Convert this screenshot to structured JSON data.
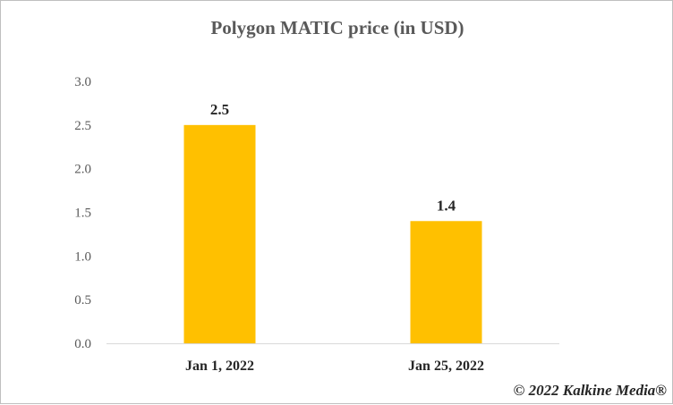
{
  "chart_data": {
    "type": "bar",
    "title": "Polygon MATIC price (in USD)",
    "categories": [
      "Jan 1, 2022",
      "Jan 25, 2022"
    ],
    "values": [
      2.5,
      1.4
    ],
    "data_labels": [
      "2.5",
      "1.4"
    ],
    "xlabel": "",
    "ylabel": "",
    "ylim": [
      0,
      3.0
    ],
    "yticks": [
      "0.0",
      "0.5",
      "1.0",
      "1.5",
      "2.0",
      "2.5",
      "3.0"
    ],
    "ytick_values": [
      0,
      0.5,
      1.0,
      1.5,
      2.0,
      2.5,
      3.0
    ],
    "grid": false,
    "legend": "none",
    "bar_color": "#FFC000"
  },
  "copyright": "© 2022 Kalkine Media®"
}
